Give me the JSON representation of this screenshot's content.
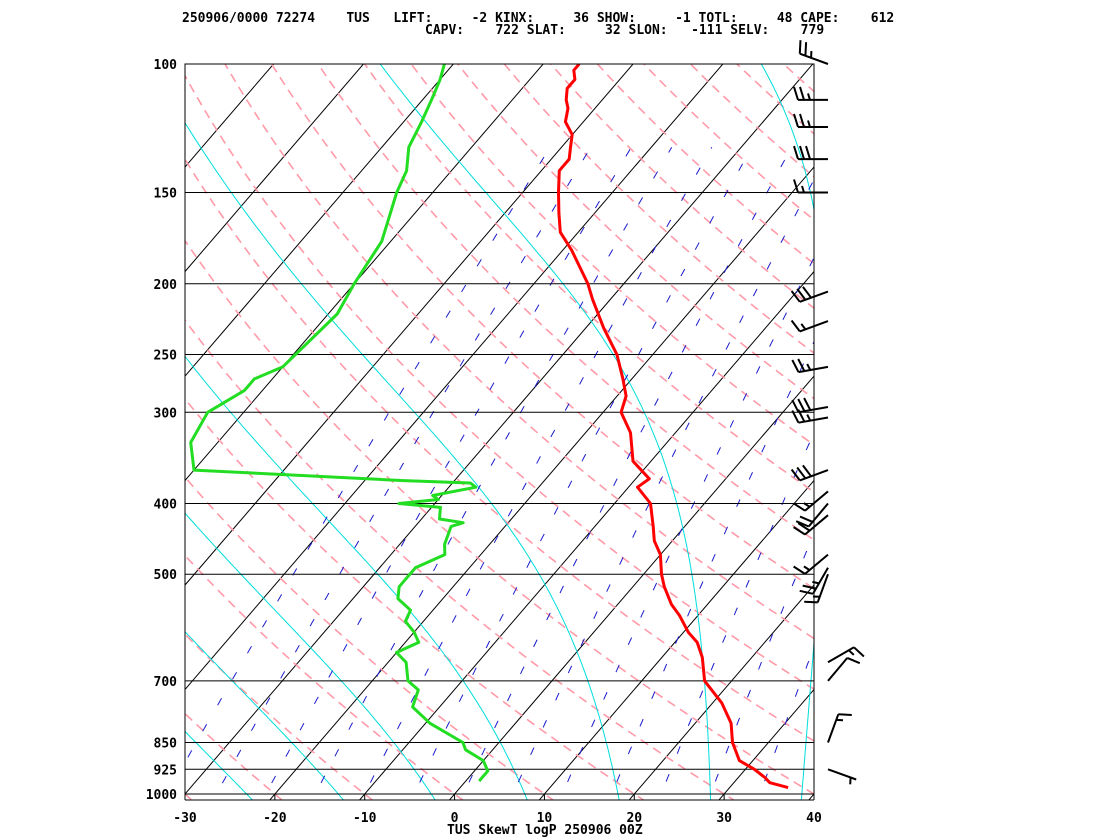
{
  "header": {
    "line1": "250906/0000 72274    TUS   LIFT:     -2 KINX:     36 SHOW:     -1 TOTL:     48 CAPE:    612",
    "line2": "CAPV:    722 SLAT:     32 SLON:   -111 SELV:    779"
  },
  "indices": {
    "station_id": "72274",
    "station": "TUS",
    "datetime": "250906/0000",
    "LIFT": -2,
    "KINX": 36,
    "SHOW": -1,
    "TOTL": 48,
    "CAPE": 612,
    "CAPV": 722,
    "SLAT": 32,
    "SLON": -111,
    "SELV": 779
  },
  "colors": {
    "isobar": "#000000",
    "isotherm": "#000000",
    "dry_adiabat": "#ff9aa8",
    "moist_adiabat": "#00dddd",
    "mixing_ratio": "#1a1acc",
    "temperature": "#ff0000",
    "dewpoint": "#22dd22",
    "wind": "#000000"
  },
  "chart_data": {
    "type": "line",
    "title": "TUS SkewT logP 250906 00Z",
    "xlabel": "",
    "ylabel": "",
    "x_ticks": [
      "-30",
      "-20",
      "-10",
      "0",
      "10",
      "20",
      "30",
      "40"
    ],
    "x_tick_values": [
      -30,
      -20,
      -10,
      0,
      10,
      20,
      30,
      40
    ],
    "xlim": [
      -30,
      40
    ],
    "y_scale": "log",
    "ylim": [
      1000,
      100
    ],
    "y_ticks": [
      "100",
      "150",
      "200",
      "250",
      "300",
      "400",
      "500",
      "700",
      "850",
      "925",
      "1000"
    ],
    "y_tick_values": [
      100,
      150,
      200,
      250,
      300,
      400,
      500,
      700,
      850,
      925,
      1000
    ],
    "grid": true,
    "series": [
      {
        "kind": "temperature",
        "points": [
          [
            980,
            36.5
          ],
          [
            965,
            34
          ],
          [
            950,
            33
          ],
          [
            925,
            31
          ],
          [
            900,
            28.5
          ],
          [
            850,
            26
          ],
          [
            800,
            24
          ],
          [
            750,
            21
          ],
          [
            700,
            17
          ],
          [
            650,
            14.5
          ],
          [
            620,
            12.5
          ],
          [
            600,
            10.5
          ],
          [
            570,
            8
          ],
          [
            550,
            6
          ],
          [
            520,
            3.5
          ],
          [
            500,
            2
          ],
          [
            470,
            0
          ],
          [
            450,
            -2
          ],
          [
            430,
            -3.5
          ],
          [
            400,
            -6
          ],
          [
            380,
            -9
          ],
          [
            370,
            -8.5
          ],
          [
            350,
            -12
          ],
          [
            320,
            -15
          ],
          [
            300,
            -18
          ],
          [
            285,
            -19
          ],
          [
            270,
            -21
          ],
          [
            250,
            -24
          ],
          [
            230,
            -28
          ],
          [
            210,
            -32
          ],
          [
            200,
            -34
          ],
          [
            180,
            -39
          ],
          [
            170,
            -42
          ],
          [
            160,
            -44
          ],
          [
            150,
            -46
          ],
          [
            140,
            -48
          ],
          [
            135,
            -48
          ],
          [
            130,
            -49
          ],
          [
            125,
            -50
          ],
          [
            120,
            -52
          ],
          [
            115,
            -53
          ],
          [
            112,
            -54
          ],
          [
            108,
            -55
          ],
          [
            105,
            -55
          ],
          [
            102,
            -56
          ],
          [
            100,
            -56
          ]
        ]
      },
      {
        "kind": "dewpoint",
        "points": [
          [
            960,
            1.5
          ],
          [
            950,
            1.5
          ],
          [
            930,
            1.5
          ],
          [
            900,
            0
          ],
          [
            870,
            -3
          ],
          [
            850,
            -4
          ],
          [
            800,
            -9.5
          ],
          [
            760,
            -13
          ],
          [
            720,
            -14
          ],
          [
            700,
            -16
          ],
          [
            660,
            -18
          ],
          [
            640,
            -20
          ],
          [
            620,
            -18.5
          ],
          [
            600,
            -20
          ],
          [
            580,
            -22
          ],
          [
            560,
            -22.5
          ],
          [
            540,
            -25
          ],
          [
            520,
            -26
          ],
          [
            500,
            -26
          ],
          [
            490,
            -26
          ],
          [
            470,
            -24
          ],
          [
            455,
            -25
          ],
          [
            430,
            -26
          ],
          [
            425,
            -25
          ],
          [
            420,
            -28
          ],
          [
            405,
            -29
          ],
          [
            400,
            -34
          ],
          [
            395,
            -30
          ],
          [
            390,
            -31
          ],
          [
            380,
            -27
          ],
          [
            375,
            -28
          ],
          [
            372,
            -36
          ],
          [
            360,
            -60
          ],
          [
            330,
            -63
          ],
          [
            300,
            -64
          ],
          [
            280,
            -62
          ],
          [
            270,
            -62
          ],
          [
            260,
            -60
          ],
          [
            220,
            -59
          ],
          [
            200,
            -60
          ],
          [
            175,
            -61
          ],
          [
            150,
            -64
          ],
          [
            140,
            -65
          ],
          [
            130,
            -67
          ],
          [
            120,
            -68
          ],
          [
            112,
            -69
          ],
          [
            105,
            -70
          ],
          [
            100,
            -71
          ]
        ]
      }
    ],
    "winds": [
      {
        "p": 100,
        "dir": 290,
        "kt": 25
      },
      {
        "p": 112,
        "dir": 270,
        "kt": 25
      },
      {
        "p": 122,
        "dir": 270,
        "kt": 25
      },
      {
        "p": 135,
        "dir": 270,
        "kt": 30
      },
      {
        "p": 150,
        "dir": 270,
        "kt": 15
      },
      {
        "p": 205,
        "dir": 250,
        "kt": 30
      },
      {
        "p": 225,
        "dir": 250,
        "kt": 15
      },
      {
        "p": 260,
        "dir": 260,
        "kt": 25
      },
      {
        "p": 295,
        "dir": 260,
        "kt": 30
      },
      {
        "p": 305,
        "dir": 260,
        "kt": 25
      },
      {
        "p": 360,
        "dir": 250,
        "kt": 30
      },
      {
        "p": 385,
        "dir": 230,
        "kt": 15
      },
      {
        "p": 400,
        "dir": 220,
        "kt": 20
      },
      {
        "p": 415,
        "dir": 230,
        "kt": 20
      },
      {
        "p": 470,
        "dir": 230,
        "kt": 15
      },
      {
        "p": 490,
        "dir": 210,
        "kt": 25
      },
      {
        "p": 500,
        "dir": 200,
        "kt": 15
      },
      {
        "p": 660,
        "dir": 60,
        "kt": 15
      },
      {
        "p": 700,
        "dir": 40,
        "kt": 10
      },
      {
        "p": 850,
        "dir": 20,
        "kt": 15
      },
      {
        "p": 925,
        "dir": 110,
        "kt": 5
      }
    ]
  }
}
